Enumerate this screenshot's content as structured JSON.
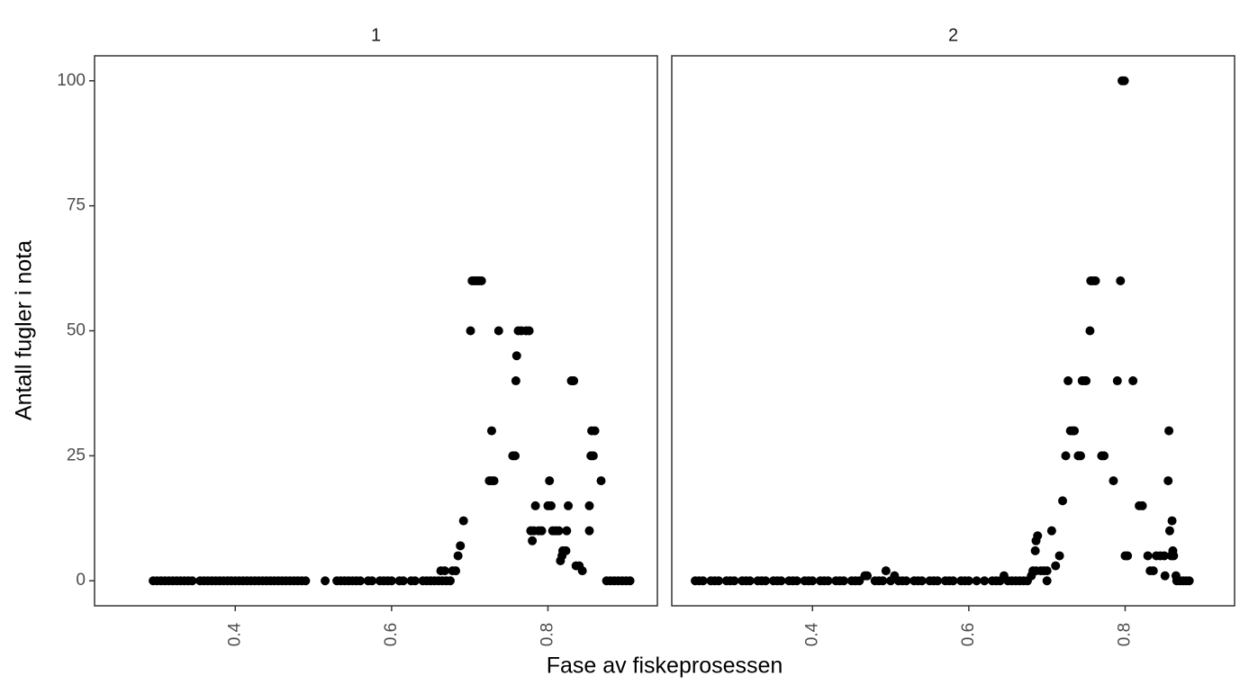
{
  "chart_data": [
    {
      "type": "scatter",
      "title": "1",
      "xlabel": "Fase av fiskeprosessen",
      "ylabel": "Antall fugler i nota",
      "color": "#000000",
      "xlim": [
        0.22,
        0.94
      ],
      "ylim": [
        -5,
        105
      ],
      "xticks": [
        0.4,
        0.6,
        0.8
      ],
      "yticks": [
        0,
        25,
        50,
        75,
        100
      ],
      "grid": false,
      "x": [
        0.295,
        0.3,
        0.305,
        0.31,
        0.315,
        0.32,
        0.325,
        0.33,
        0.335,
        0.34,
        0.345,
        0.355,
        0.36,
        0.365,
        0.37,
        0.375,
        0.38,
        0.385,
        0.39,
        0.395,
        0.4,
        0.405,
        0.41,
        0.415,
        0.42,
        0.425,
        0.43,
        0.435,
        0.44,
        0.445,
        0.45,
        0.455,
        0.46,
        0.465,
        0.47,
        0.475,
        0.48,
        0.485,
        0.49,
        0.515,
        0.53,
        0.535,
        0.54,
        0.545,
        0.55,
        0.555,
        0.56,
        0.57,
        0.575,
        0.585,
        0.59,
        0.595,
        0.6,
        0.61,
        0.615,
        0.625,
        0.63,
        0.64,
        0.645,
        0.65,
        0.655,
        0.66,
        0.665,
        0.67,
        0.675,
        0.663,
        0.668,
        0.678,
        0.682,
        0.685,
        0.688,
        0.692,
        0.701,
        0.703,
        0.706,
        0.709,
        0.712,
        0.715,
        0.725,
        0.728,
        0.731,
        0.728,
        0.737,
        0.755,
        0.758,
        0.759,
        0.76,
        0.762,
        0.766,
        0.772,
        0.776,
        0.778,
        0.78,
        0.782,
        0.784,
        0.788,
        0.792,
        0.8,
        0.804,
        0.802,
        0.806,
        0.81,
        0.814,
        0.816,
        0.818,
        0.819,
        0.823,
        0.824,
        0.826,
        0.83,
        0.833,
        0.836,
        0.84,
        0.844,
        0.853,
        0.853,
        0.855,
        0.858,
        0.856,
        0.86,
        0.868,
        0.875,
        0.88,
        0.885,
        0.89,
        0.895,
        0.9,
        0.905
      ],
      "y": [
        0,
        0,
        0,
        0,
        0,
        0,
        0,
        0,
        0,
        0,
        0,
        0,
        0,
        0,
        0,
        0,
        0,
        0,
        0,
        0,
        0,
        0,
        0,
        0,
        0,
        0,
        0,
        0,
        0,
        0,
        0,
        0,
        0,
        0,
        0,
        0,
        0,
        0,
        0,
        0,
        0,
        0,
        0,
        0,
        0,
        0,
        0,
        0,
        0,
        0,
        0,
        0,
        0,
        0,
        0,
        0,
        0,
        0,
        0,
        0,
        0,
        0,
        0,
        0,
        0,
        2,
        2,
        2,
        2,
        5,
        7,
        12,
        50,
        60,
        60,
        60,
        60,
        60,
        20,
        20,
        20,
        30,
        50,
        25,
        25,
        40,
        45,
        50,
        50,
        50,
        50,
        10,
        8,
        10,
        15,
        10,
        10,
        15,
        15,
        20,
        10,
        10,
        10,
        4,
        5,
        6,
        6,
        10,
        15,
        40,
        40,
        3,
        3,
        2,
        10,
        15,
        25,
        25,
        30,
        30,
        20,
        0,
        0,
        0,
        0,
        0,
        0,
        0
      ]
    },
    {
      "type": "scatter",
      "title": "2",
      "color": "#000000",
      "xlim": [
        0.22,
        0.94
      ],
      "ylim": [
        -5,
        105
      ],
      "xticks": [
        0.4,
        0.6,
        0.8
      ],
      "x": [
        0.25,
        0.255,
        0.26,
        0.27,
        0.275,
        0.28,
        0.29,
        0.295,
        0.3,
        0.31,
        0.315,
        0.32,
        0.33,
        0.335,
        0.34,
        0.35,
        0.355,
        0.36,
        0.37,
        0.375,
        0.38,
        0.39,
        0.395,
        0.4,
        0.41,
        0.415,
        0.42,
        0.43,
        0.435,
        0.44,
        0.45,
        0.455,
        0.46,
        0.48,
        0.485,
        0.49,
        0.5,
        0.51,
        0.515,
        0.52,
        0.53,
        0.535,
        0.54,
        0.55,
        0.555,
        0.56,
        0.57,
        0.575,
        0.58,
        0.59,
        0.595,
        0.6,
        0.61,
        0.62,
        0.63,
        0.635,
        0.64,
        0.65,
        0.655,
        0.66,
        0.665,
        0.67,
        0.675,
        0.7,
        0.467,
        0.47,
        0.494,
        0.505,
        0.645,
        0.68,
        0.682,
        0.686,
        0.685,
        0.686,
        0.688,
        0.692,
        0.696,
        0.7,
        0.706,
        0.711,
        0.716,
        0.72,
        0.724,
        0.727,
        0.73,
        0.733,
        0.735,
        0.74,
        0.743,
        0.745,
        0.748,
        0.75,
        0.755,
        0.756,
        0.759,
        0.762,
        0.77,
        0.773,
        0.785,
        0.79,
        0.794,
        0.796,
        0.799,
        0.8,
        0.803,
        0.81,
        0.818,
        0.822,
        0.829,
        0.832,
        0.836,
        0.84,
        0.845,
        0.85,
        0.851,
        0.855,
        0.856,
        0.857,
        0.86,
        0.859,
        0.862,
        0.861,
        0.865,
        0.866,
        0.87,
        0.874,
        0.878,
        0.882
      ],
      "y": [
        0,
        0,
        0,
        0,
        0,
        0,
        0,
        0,
        0,
        0,
        0,
        0,
        0,
        0,
        0,
        0,
        0,
        0,
        0,
        0,
        0,
        0,
        0,
        0,
        0,
        0,
        0,
        0,
        0,
        0,
        0,
        0,
        0,
        0,
        0,
        0,
        0,
        0,
        0,
        0,
        0,
        0,
        0,
        0,
        0,
        0,
        0,
        0,
        0,
        0,
        0,
        0,
        0,
        0,
        0,
        0,
        0,
        0,
        0,
        0,
        0,
        0,
        0,
        0,
        1,
        1,
        2,
        1,
        1,
        1,
        2,
        2,
        6,
        8,
        9,
        2,
        2,
        2,
        10,
        3,
        5,
        16,
        25,
        40,
        30,
        30,
        30,
        25,
        25,
        40,
        40,
        40,
        50,
        60,
        60,
        60,
        25,
        25,
        20,
        40,
        60,
        100,
        100,
        5,
        5,
        40,
        15,
        15,
        5,
        2,
        2,
        5,
        5,
        5,
        1,
        20,
        30,
        10,
        12,
        5,
        5,
        6,
        1,
        0,
        0,
        0,
        0,
        0
      ]
    }
  ]
}
